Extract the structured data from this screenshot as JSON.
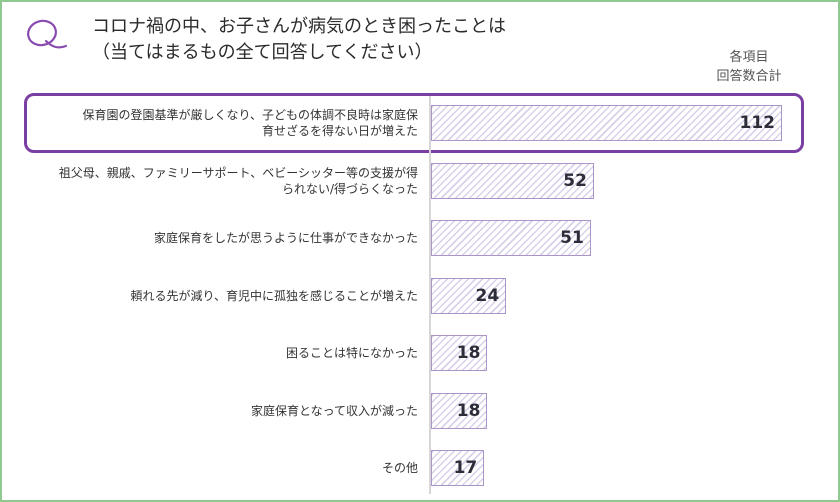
{
  "header": {
    "title_line1": "コロナ禍の中、お子さんが病気のとき困ったことは",
    "title_line2": "（当てはまるもの全て回答してください）",
    "sum_label_line1": "各項目",
    "sum_label_line2": "回答数合計"
  },
  "colors": {
    "accent": "#7b3fa3",
    "bar_stripe": "#d9d0ea",
    "bar_border": "#a995c8",
    "frame": "#8fc98f"
  },
  "chart_data": {
    "type": "bar",
    "orientation": "horizontal",
    "categories": [
      "保育園の登園基準が厳しくなり、子どもの体調不良時は家庭保育せざるを得ない日が増えた",
      "祖父母、親戚、ファミリーサポート、ベビーシッター等の支援が得られない/得づらくなった",
      "家庭保育をしたが思うように仕事ができなかった",
      "頼れる先が減り、育児中に孤独を感じることが増えた",
      "困ることは特になかった",
      "家庭保育となって収入が減った",
      "その他"
    ],
    "category_lines": [
      [
        "保育園の登園基準が厳しくなり、子どもの体調不良時は家庭保",
        "育せざるを得ない日が増えた"
      ],
      [
        "祖父母、親戚、ファミリーサポート、ベビーシッター等の支援が得",
        "られない/得づらくなった"
      ],
      [
        "家庭保育をしたが思うように仕事ができなかった"
      ],
      [
        "頼れる先が減り、育児中に孤独を感じることが増えた"
      ],
      [
        "困ることは特になかった"
      ],
      [
        "家庭保育となって収入が減った"
      ],
      [
        "その他"
      ]
    ],
    "values": [
      112,
      52,
      51,
      24,
      18,
      18,
      17
    ],
    "value_labels": [
      "112",
      "52",
      "51",
      "24",
      "18",
      "18",
      "17"
    ],
    "highlighted_index": 0,
    "xlim": [
      0,
      112
    ]
  }
}
